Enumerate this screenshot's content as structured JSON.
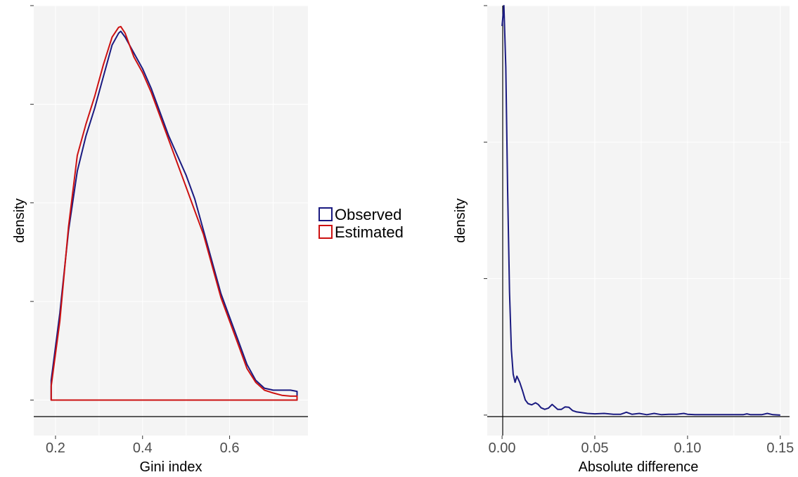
{
  "colors": {
    "observed": "#1a1a80",
    "estimated": "#cc1111",
    "panel_background": "#f4f4f4",
    "grid": "#ffffff",
    "axis_line": "#000000"
  },
  "legend": {
    "placement": "between panels",
    "items": [
      {
        "label": "Observed",
        "color": "#1a1a80"
      },
      {
        "label": "Estimated",
        "color": "#cc1111"
      }
    ]
  },
  "chart_data": [
    {
      "type": "area",
      "xlabel": "Gini index",
      "ylabel": "density",
      "xlim": [
        0.15,
        0.78
      ],
      "ylim": [
        -0.09,
        1.0
      ],
      "xticks": [
        "0.2",
        "0.4",
        "0.6"
      ],
      "xtick_values": [
        0.2,
        0.4,
        0.6
      ],
      "grid": true,
      "series": [
        {
          "name": "Observed",
          "color": "#1a1a80",
          "x": [
            0.19,
            0.21,
            0.23,
            0.25,
            0.27,
            0.29,
            0.31,
            0.33,
            0.345,
            0.35,
            0.36,
            0.38,
            0.4,
            0.42,
            0.44,
            0.46,
            0.48,
            0.5,
            0.52,
            0.54,
            0.56,
            0.58,
            0.6,
            0.62,
            0.64,
            0.66,
            0.68,
            0.7,
            0.72,
            0.74,
            0.755
          ],
          "y": [
            0.05,
            0.22,
            0.43,
            0.58,
            0.67,
            0.74,
            0.82,
            0.9,
            0.93,
            0.935,
            0.92,
            0.88,
            0.84,
            0.79,
            0.73,
            0.67,
            0.62,
            0.57,
            0.51,
            0.43,
            0.35,
            0.27,
            0.21,
            0.15,
            0.09,
            0.05,
            0.03,
            0.025,
            0.025,
            0.025,
            0.022
          ]
        },
        {
          "name": "Estimated",
          "color": "#cc1111",
          "x": [
            0.19,
            0.21,
            0.23,
            0.25,
            0.27,
            0.29,
            0.31,
            0.33,
            0.345,
            0.35,
            0.36,
            0.38,
            0.4,
            0.42,
            0.44,
            0.46,
            0.48,
            0.5,
            0.52,
            0.54,
            0.56,
            0.58,
            0.6,
            0.62,
            0.64,
            0.66,
            0.68,
            0.7,
            0.72,
            0.74,
            0.755
          ],
          "y": [
            0.035,
            0.2,
            0.44,
            0.62,
            0.7,
            0.77,
            0.85,
            0.92,
            0.945,
            0.947,
            0.93,
            0.87,
            0.83,
            0.78,
            0.72,
            0.66,
            0.6,
            0.54,
            0.48,
            0.42,
            0.34,
            0.26,
            0.2,
            0.14,
            0.08,
            0.045,
            0.025,
            0.018,
            0.012,
            0.01,
            0.01
          ]
        }
      ]
    },
    {
      "type": "line",
      "xlabel": "Absolute difference",
      "ylabel": "density",
      "xlim": [
        -0.008,
        0.155
      ],
      "ylim": [
        -0.05,
        1.0
      ],
      "xticks": [
        "0.00",
        "0.05",
        "0.10",
        "0.15"
      ],
      "xtick_values": [
        0.0,
        0.05,
        0.1,
        0.15
      ],
      "grid": true,
      "series": [
        {
          "name": "Observed",
          "color": "#1a1a80",
          "x": [
            0.0,
            0.001,
            0.002,
            0.003,
            0.004,
            0.005,
            0.006,
            0.007,
            0.008,
            0.0095,
            0.011,
            0.0125,
            0.014,
            0.016,
            0.018,
            0.0195,
            0.021,
            0.023,
            0.025,
            0.027,
            0.0285,
            0.03,
            0.032,
            0.034,
            0.036,
            0.038,
            0.04,
            0.043,
            0.046,
            0.05,
            0.055,
            0.06,
            0.064,
            0.067,
            0.07,
            0.074,
            0.078,
            0.082,
            0.086,
            0.09,
            0.094,
            0.098,
            0.1,
            0.104,
            0.11,
            0.12,
            0.13,
            0.132,
            0.134,
            0.14,
            0.143,
            0.146,
            0.15
          ],
          "y": [
            0.95,
            1.0,
            0.85,
            0.55,
            0.3,
            0.16,
            0.1,
            0.08,
            0.095,
            0.08,
            0.06,
            0.037,
            0.028,
            0.025,
            0.03,
            0.026,
            0.018,
            0.014,
            0.017,
            0.026,
            0.02,
            0.014,
            0.014,
            0.02,
            0.019,
            0.011,
            0.008,
            0.006,
            0.004,
            0.003,
            0.004,
            0.002,
            0.002,
            0.007,
            0.002,
            0.004,
            0.001,
            0.004,
            0.001,
            0.002,
            0.002,
            0.004,
            0.002,
            0.001,
            0.001,
            0.001,
            0.001,
            0.003,
            0.001,
            0.001,
            0.004,
            0.001,
            0.0
          ]
        }
      ]
    }
  ]
}
